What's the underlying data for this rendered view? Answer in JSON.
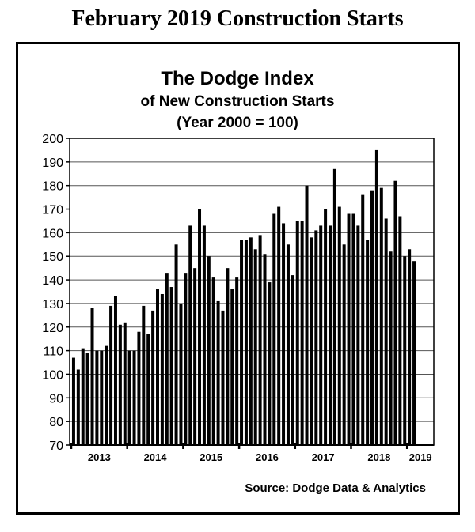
{
  "page_title": "February 2019 Construction Starts",
  "chart_data": {
    "type": "bar",
    "title": "The Dodge Index",
    "subtitle": "of New Construction Starts",
    "subtitle2": "(Year 2000 = 100)",
    "source": "Source:  Dodge Data & Analytics",
    "xlabel": "",
    "ylabel": "",
    "ylim": [
      70,
      200
    ],
    "yticks": [
      70,
      80,
      90,
      100,
      110,
      120,
      130,
      140,
      150,
      160,
      170,
      180,
      190,
      200
    ],
    "xtick_labels": [
      "2013",
      "2014",
      "2015",
      "2016",
      "2017",
      "2018",
      "2019"
    ],
    "grid": true,
    "bar_color": "#000000",
    "frequency": "monthly",
    "start": "2013-01",
    "end": "2019-02",
    "values": [
      107,
      102,
      111,
      109,
      128,
      110,
      110,
      112,
      129,
      133,
      121,
      122,
      110,
      110,
      118,
      129,
      117,
      127,
      136,
      134,
      143,
      137,
      155,
      130,
      143,
      163,
      145,
      170,
      163,
      150,
      141,
      131,
      127,
      145,
      136,
      141,
      157,
      157,
      158,
      153,
      159,
      151,
      139,
      168,
      171,
      164,
      155,
      142,
      165,
      165,
      180,
      158,
      161,
      163,
      170,
      163,
      187,
      171,
      155,
      168,
      168,
      163,
      176,
      157,
      178,
      195,
      179,
      166,
      152,
      182,
      167,
      150,
      153,
      148
    ]
  }
}
